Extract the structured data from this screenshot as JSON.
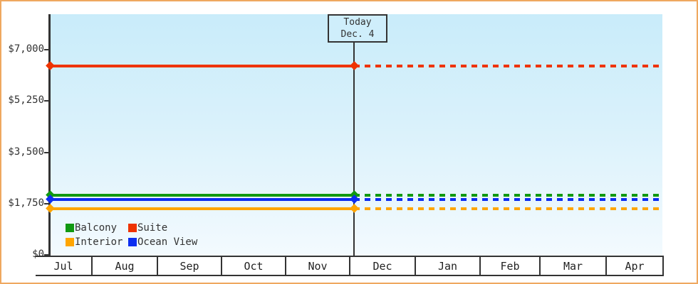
{
  "colors": {
    "page_border": "#efa860",
    "axis": "#333333",
    "plot_bg_top": "#c9ecfa",
    "plot_bg_bottom": "#f3fafe",
    "today_box_bg": "#cfeefb"
  },
  "chart_data": {
    "type": "line",
    "title": "",
    "xlabel": "",
    "ylabel": "",
    "ylim": [
      0,
      7000
    ],
    "grid": false,
    "yticks": [
      {
        "value": 0,
        "label": "$0"
      },
      {
        "value": 1750,
        "label": "$1,750"
      },
      {
        "value": 3500,
        "label": "$3,500"
      },
      {
        "value": 5250,
        "label": "$5,250"
      },
      {
        "value": 7000,
        "label": "$7,000"
      }
    ],
    "categories": [
      "Jul",
      "Aug",
      "Sep",
      "Oct",
      "Nov",
      "Dec",
      "Jan",
      "Feb",
      "Mar",
      "Apr"
    ],
    "today": {
      "label1": "Today",
      "label2": "Dec. 4",
      "month": "Dec",
      "day": 4
    },
    "series": [
      {
        "name": "Suite",
        "value": 6450,
        "color": "#ee3300",
        "style": "solid-before-today-dashed-after"
      },
      {
        "name": "Balcony",
        "value": 2040,
        "color": "#119911",
        "style": "solid-before-today-dashed-after"
      },
      {
        "name": "Ocean View",
        "value": 1890,
        "color": "#0c2ef0",
        "style": "solid-before-today-dashed-after"
      },
      {
        "name": "Interior",
        "value": 1575,
        "color": "#ffa500",
        "style": "solid-before-today-dashed-after"
      }
    ],
    "legend": [
      {
        "label": "Balcony",
        "color": "#119911"
      },
      {
        "label": "Suite",
        "color": "#ee3300"
      },
      {
        "label": "Interior",
        "color": "#ffa500"
      },
      {
        "label": "Ocean View",
        "color": "#0c2ef0"
      }
    ],
    "legend_position": "bottom-left"
  }
}
